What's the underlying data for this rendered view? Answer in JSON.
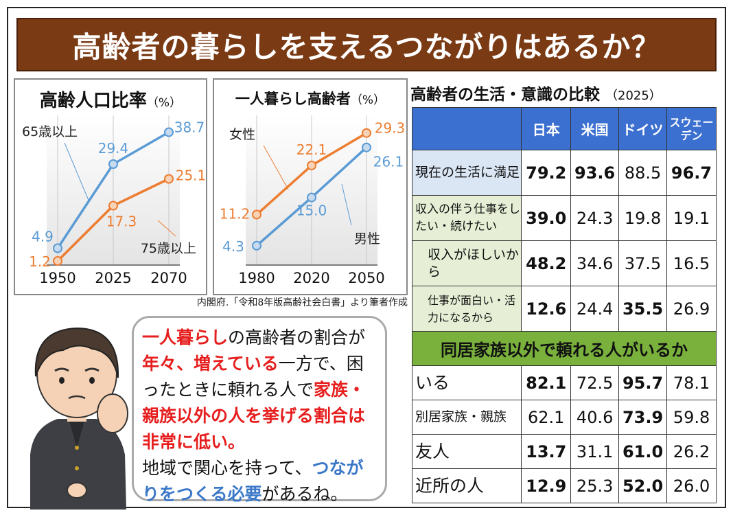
{
  "title": "高齢者の暮らしを支えるつながりはあるか？",
  "chart_data": [
    {
      "type": "line",
      "title": "高齢人口比率",
      "unit": "（%）",
      "categories": [
        "1950",
        "2025",
        "2070"
      ],
      "ylim": [
        0,
        42
      ],
      "series": [
        {
          "name": "65歳以上",
          "values": [
            4.9,
            29.4,
            38.7
          ],
          "color": "#5b9bd5"
        },
        {
          "name": "75歳以上",
          "values": [
            1.2,
            17.3,
            25.1
          ],
          "color": "#ed7d31"
        }
      ]
    },
    {
      "type": "line",
      "title": "一人暮らし高齢者",
      "unit": "（%）",
      "categories": [
        "1980",
        "2020",
        "2050"
      ],
      "ylim": [
        0,
        32
      ],
      "series": [
        {
          "name": "女性",
          "values": [
            11.2,
            22.1,
            29.3
          ],
          "color": "#ed7d31"
        },
        {
          "name": "男性",
          "values": [
            4.3,
            15.0,
            26.1
          ],
          "color": "#5b9bd5"
        }
      ]
    },
    {
      "type": "table",
      "title": "高齢者の生活・意識の比較",
      "unit": "（2025）",
      "columns": [
        "日本",
        "米国",
        "ドイツ",
        "スウェーデン"
      ],
      "rows": [
        {
          "label": "現在の生活に満足",
          "values": [
            "79.2",
            "93.6",
            "88.5",
            "96.7"
          ]
        },
        {
          "label": "収入の伴う仕事をしたい・続けたい",
          "values": [
            "39.0",
            "24.3",
            "19.8",
            "19.1"
          ]
        },
        {
          "label": "収入がほしいから",
          "values": [
            "48.2",
            "34.6",
            "37.5",
            "16.5"
          ]
        },
        {
          "label": "仕事が面白い・活力になるから",
          "values": [
            "12.6",
            "24.4",
            "35.5",
            "26.9"
          ]
        }
      ],
      "section2_title": "同居家族以外で頼れる人がいるか",
      "rows2": [
        {
          "label": "いる",
          "values": [
            "82.1",
            "72.5",
            "95.7",
            "78.1"
          ]
        },
        {
          "label": "別居家族・親族",
          "values": [
            "62.1",
            "40.6",
            "73.9",
            "59.8"
          ]
        },
        {
          "label": "友人",
          "values": [
            "13.7",
            "31.1",
            "61.0",
            "26.2"
          ]
        },
        {
          "label": "近所の人",
          "values": [
            "12.9",
            "25.3",
            "52.0",
            "26.0"
          ]
        }
      ]
    }
  ],
  "source": "内閣府.「令和8年版高齢社会白書」より筆者作成",
  "speech": {
    "p1": "一人暮らし",
    "p2": "の高齢者の割合が",
    "p3": "年々、増えている",
    "p4": "一方で、困ったときに頼れる人で",
    "p5": "家族・親族以外の人を挙げる割合は非常に低い。",
    "p6": "地域で関心を持って、",
    "p7": "つながりをつくる必要",
    "p8": "があるね。"
  }
}
